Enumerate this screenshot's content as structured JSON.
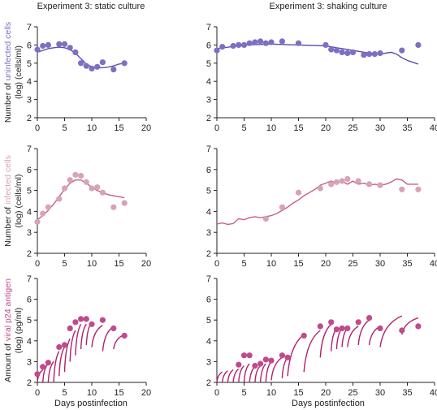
{
  "colors": {
    "uninfected": "#7b70c4",
    "uninfected_line": "#5a4fae",
    "infected": "#d8a3b3",
    "infected_line": "#c4607e",
    "p24": "#c04a8c",
    "p24_line": "#b01f6e",
    "axis": "#222222"
  },
  "column_titles": [
    "Experiment 3: static culture",
    "Experiment 3: shaking culture"
  ],
  "xlabel": "Days postinfection",
  "row_labels": [
    {
      "line1_pre": "Number of ",
      "line1_hl": "uninfected cells",
      "line2": "(log) (cells/ml)"
    },
    {
      "line1_pre": "Number of ",
      "line1_hl": "infected cells",
      "line2": "(log) (cells/ml)"
    },
    {
      "line1_pre": "Amount of ",
      "line1_hl": "viral p24 antigen",
      "line2": "(log) (pg/ml)"
    }
  ],
  "chart_data": [
    {
      "type": "scatter",
      "row": 0,
      "col": 0,
      "xlim": [
        0,
        20
      ],
      "ylim": [
        2,
        7
      ],
      "xticks": [
        0,
        5,
        10,
        15,
        20
      ],
      "yticks": [
        2,
        3,
        4,
        5,
        6,
        7
      ],
      "points": [
        [
          0,
          5.75
        ],
        [
          1,
          5.95
        ],
        [
          2,
          6.0
        ],
        [
          4,
          6.05
        ],
        [
          5,
          6.05
        ],
        [
          6,
          5.85
        ],
        [
          7,
          5.6
        ],
        [
          8,
          5.0
        ],
        [
          9,
          4.85
        ],
        [
          10,
          4.7
        ],
        [
          11,
          4.8
        ],
        [
          12,
          5.05
        ],
        [
          14,
          4.65
        ],
        [
          16,
          5.0
        ]
      ],
      "fit": [
        [
          0,
          5.6
        ],
        [
          1,
          5.7
        ],
        [
          2,
          5.8
        ],
        [
          3,
          5.85
        ],
        [
          4,
          5.88
        ],
        [
          5,
          5.85
        ],
        [
          6,
          5.75
        ],
        [
          7,
          5.55
        ],
        [
          8,
          5.25
        ],
        [
          9,
          4.95
        ],
        [
          10,
          4.8
        ],
        [
          11,
          4.75
        ],
        [
          12,
          4.75
        ],
        [
          13,
          4.78
        ],
        [
          14,
          4.85
        ],
        [
          15,
          4.95
        ],
        [
          16,
          5.0
        ]
      ]
    },
    {
      "type": "scatter",
      "row": 0,
      "col": 1,
      "xlim": [
        0,
        40
      ],
      "ylim": [
        2,
        7
      ],
      "xticks": [
        0,
        5,
        10,
        15,
        20,
        25,
        30,
        35,
        40
      ],
      "yticks": [
        2,
        3,
        4,
        5,
        6,
        7
      ],
      "points": [
        [
          0,
          5.7
        ],
        [
          1,
          5.9
        ],
        [
          3,
          5.95
        ],
        [
          4,
          6.0
        ],
        [
          5,
          6.0
        ],
        [
          6,
          6.1
        ],
        [
          7,
          6.15
        ],
        [
          8,
          6.2
        ],
        [
          9,
          6.1
        ],
        [
          10,
          6.15
        ],
        [
          12,
          6.2
        ],
        [
          15,
          6.1
        ],
        [
          20,
          6.0
        ],
        [
          21,
          5.75
        ],
        [
          22,
          5.7
        ],
        [
          23,
          5.6
        ],
        [
          24,
          5.55
        ],
        [
          25,
          5.6
        ],
        [
          27,
          5.45
        ],
        [
          28,
          5.5
        ],
        [
          29,
          5.5
        ],
        [
          30,
          5.55
        ],
        [
          34,
          5.7
        ],
        [
          37,
          6.0
        ]
      ],
      "fit": [
        [
          0,
          5.8
        ],
        [
          5,
          6.0
        ],
        [
          10,
          6.05
        ],
        [
          15,
          6.0
        ],
        [
          20,
          5.95
        ],
        [
          22,
          5.85
        ],
        [
          24,
          5.75
        ],
        [
          26,
          5.65
        ],
        [
          28,
          5.55
        ],
        [
          30,
          5.5
        ],
        [
          31,
          5.55
        ],
        [
          32,
          5.6
        ],
        [
          33,
          5.5
        ],
        [
          34,
          5.3
        ],
        [
          35,
          5.15
        ],
        [
          36,
          5.05
        ],
        [
          37,
          4.95
        ]
      ]
    },
    {
      "type": "scatter",
      "row": 1,
      "col": 0,
      "xlim": [
        0,
        20
      ],
      "ylim": [
        2,
        7
      ],
      "xticks": [
        0,
        5,
        10,
        15,
        20
      ],
      "yticks": [
        2,
        3,
        4,
        5,
        6,
        7
      ],
      "points": [
        [
          0,
          3.5
        ],
        [
          1,
          3.9
        ],
        [
          2,
          4.2
        ],
        [
          4,
          4.6
        ],
        [
          5,
          5.1
        ],
        [
          6,
          5.5
        ],
        [
          7,
          5.75
        ],
        [
          8,
          5.7
        ],
        [
          9,
          5.4
        ],
        [
          10,
          5.1
        ],
        [
          11,
          5.15
        ],
        [
          12,
          4.9
        ],
        [
          14,
          4.2
        ],
        [
          16,
          4.4
        ]
      ],
      "fit": [
        [
          0,
          3.6
        ],
        [
          1,
          3.8
        ],
        [
          2,
          4.05
        ],
        [
          3,
          4.35
        ],
        [
          4,
          4.7
        ],
        [
          5,
          5.05
        ],
        [
          6,
          5.35
        ],
        [
          7,
          5.5
        ],
        [
          8,
          5.5
        ],
        [
          9,
          5.35
        ],
        [
          10,
          5.15
        ],
        [
          11,
          5.0
        ],
        [
          12,
          4.9
        ],
        [
          13,
          4.8
        ],
        [
          14,
          4.75
        ],
        [
          15,
          4.7
        ],
        [
          16,
          4.65
        ]
      ]
    },
    {
      "type": "scatter",
      "row": 1,
      "col": 1,
      "xlim": [
        0,
        40
      ],
      "ylim": [
        2,
        7
      ],
      "xticks": [
        0,
        5,
        10,
        15,
        20,
        25,
        30,
        35,
        40
      ],
      "yticks": [
        2,
        3,
        4,
        5,
        6,
        7
      ],
      "points": [
        [
          9,
          3.65
        ],
        [
          12,
          4.2
        ],
        [
          15,
          4.9
        ],
        [
          19,
          5.1
        ],
        [
          21,
          5.3
        ],
        [
          22,
          5.4
        ],
        [
          23,
          5.45
        ],
        [
          24,
          5.55
        ],
        [
          26,
          5.45
        ],
        [
          28,
          5.3
        ],
        [
          30,
          5.25
        ],
        [
          34,
          5.05
        ],
        [
          37,
          5.05
        ]
      ],
      "fit": [
        [
          0,
          3.4
        ],
        [
          1,
          3.45
        ],
        [
          2,
          3.38
        ],
        [
          3,
          3.42
        ],
        [
          4,
          3.65
        ],
        [
          5,
          3.6
        ],
        [
          6,
          3.7
        ],
        [
          7,
          3.75
        ],
        [
          8,
          3.7
        ],
        [
          9,
          3.75
        ],
        [
          10,
          3.8
        ],
        [
          11,
          3.9
        ],
        [
          12,
          4.05
        ],
        [
          13,
          4.2
        ],
        [
          14,
          4.4
        ],
        [
          15,
          4.55
        ],
        [
          16,
          4.75
        ],
        [
          17,
          4.9
        ],
        [
          18,
          5.05
        ],
        [
          19,
          5.25
        ],
        [
          20,
          5.35
        ],
        [
          21,
          5.45
        ],
        [
          22,
          5.35
        ],
        [
          23,
          5.45
        ],
        [
          24,
          5.3
        ],
        [
          25,
          5.45
        ],
        [
          26,
          5.3
        ],
        [
          27,
          5.35
        ],
        [
          28,
          5.25
        ],
        [
          29,
          5.3
        ],
        [
          30,
          5.25
        ],
        [
          31,
          5.3
        ],
        [
          32,
          5.4
        ],
        [
          33,
          5.55
        ],
        [
          34,
          5.5
        ],
        [
          35,
          5.3
        ],
        [
          36,
          5.3
        ],
        [
          37,
          5.3
        ]
      ]
    },
    {
      "type": "scatter",
      "row": 2,
      "col": 0,
      "xlim": [
        0,
        20
      ],
      "ylim": [
        2,
        7
      ],
      "xticks": [
        0,
        5,
        10,
        15,
        20
      ],
      "yticks": [
        2,
        3,
        4,
        5,
        6,
        7
      ],
      "points": [
        [
          0,
          2.4
        ],
        [
          1,
          2.75
        ],
        [
          2,
          2.95
        ],
        [
          4,
          3.7
        ],
        [
          5,
          3.8
        ],
        [
          6,
          4.6
        ],
        [
          7,
          4.9
        ],
        [
          8,
          5.05
        ],
        [
          9,
          5.05
        ],
        [
          10,
          4.8
        ],
        [
          12,
          5.0
        ],
        [
          14,
          4.6
        ],
        [
          16,
          4.25
        ]
      ],
      "fit_segments": [
        [
          [
            0,
            2.0
          ],
          [
            1,
            2.6
          ]
        ],
        [
          [
            1,
            2.0
          ],
          [
            2,
            2.9
          ]
        ],
        [
          [
            2,
            2.0
          ],
          [
            3,
            3.0
          ]
        ],
        [
          [
            3,
            2.0
          ],
          [
            4,
            3.5
          ]
        ],
        [
          [
            4,
            2.3
          ],
          [
            5,
            3.7
          ]
        ],
        [
          [
            5,
            2.5
          ],
          [
            6,
            4.1
          ]
        ],
        [
          [
            6,
            3.0
          ],
          [
            7,
            4.5
          ]
        ],
        [
          [
            7,
            3.3
          ],
          [
            8,
            4.8
          ]
        ],
        [
          [
            8,
            3.6
          ],
          [
            9,
            4.8
          ]
        ],
        [
          [
            9,
            3.8
          ],
          [
            10,
            4.9
          ]
        ],
        [
          [
            10,
            3.7
          ],
          [
            12,
            4.75
          ]
        ],
        [
          [
            12,
            3.5
          ],
          [
            14,
            4.7
          ]
        ],
        [
          [
            14,
            3.6
          ],
          [
            16,
            4.3
          ]
        ]
      ]
    },
    {
      "type": "scatter",
      "row": 2,
      "col": 1,
      "xlim": [
        0,
        40
      ],
      "ylim": [
        2,
        7
      ],
      "xticks": [
        0,
        5,
        10,
        15,
        20,
        25,
        30,
        35,
        40
      ],
      "yticks": [
        2,
        3,
        4,
        5,
        6,
        7
      ],
      "points": [
        [
          4,
          2.85
        ],
        [
          5,
          3.3
        ],
        [
          6,
          3.3
        ],
        [
          7,
          2.8
        ],
        [
          8,
          2.9
        ],
        [
          9,
          3.1
        ],
        [
          10,
          3.05
        ],
        [
          12,
          3.3
        ],
        [
          13,
          3.2
        ],
        [
          16,
          4.25
        ],
        [
          19,
          4.7
        ],
        [
          21,
          4.9
        ],
        [
          22,
          4.55
        ],
        [
          23,
          4.6
        ],
        [
          24,
          4.6
        ],
        [
          26,
          4.9
        ],
        [
          28,
          5.1
        ],
        [
          30,
          4.6
        ],
        [
          34,
          4.5
        ],
        [
          37,
          4.7
        ]
      ],
      "fit_segments": [
        [
          [
            0,
            2.0
          ],
          [
            1,
            2.5
          ]
        ],
        [
          [
            1,
            2.0
          ],
          [
            2,
            2.55
          ]
        ],
        [
          [
            2,
            2.0
          ],
          [
            3,
            2.6
          ]
        ],
        [
          [
            3,
            2.0
          ],
          [
            4,
            2.65
          ]
        ],
        [
          [
            4,
            2.0
          ],
          [
            5,
            2.8
          ]
        ],
        [
          [
            5,
            2.0
          ],
          [
            6,
            2.9
          ]
        ],
        [
          [
            6,
            2.0
          ],
          [
            7,
            2.75
          ]
        ],
        [
          [
            7,
            2.0
          ],
          [
            8,
            2.8
          ]
        ],
        [
          [
            8,
            2.0
          ],
          [
            9,
            2.9
          ]
        ],
        [
          [
            9,
            2.0
          ],
          [
            10,
            3.0
          ]
        ],
        [
          [
            10,
            2.1
          ],
          [
            12,
            3.2
          ]
        ],
        [
          [
            12,
            2.2
          ],
          [
            13,
            3.2
          ]
        ],
        [
          [
            13,
            2.3
          ],
          [
            16,
            4.3
          ]
        ],
        [
          [
            16,
            2.5
          ],
          [
            19,
            4.5
          ]
        ],
        [
          [
            19,
            3.2
          ],
          [
            21,
            4.8
          ]
        ],
        [
          [
            21,
            3.5
          ],
          [
            22,
            4.6
          ]
        ],
        [
          [
            22,
            3.6
          ],
          [
            23,
            4.6
          ]
        ],
        [
          [
            23,
            3.7
          ],
          [
            24,
            4.6
          ]
        ],
        [
          [
            24,
            3.7
          ],
          [
            26,
            4.7
          ]
        ],
        [
          [
            26,
            3.8
          ],
          [
            28,
            5.0
          ]
        ],
        [
          [
            28,
            3.8
          ],
          [
            30,
            4.7
          ]
        ],
        [
          [
            30,
            3.7
          ],
          [
            34,
            5.2
          ]
        ],
        [
          [
            34,
            4.3
          ],
          [
            37,
            5.1
          ]
        ]
      ]
    }
  ]
}
